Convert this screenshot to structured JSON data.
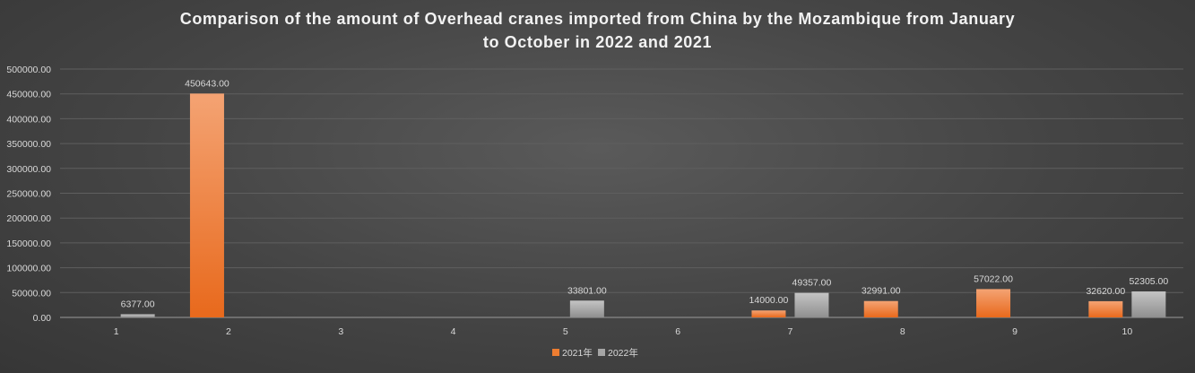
{
  "chart_data": {
    "type": "bar",
    "title_lines": [
      "Comparison of the amount of Overhead cranes imported from China by the Mozambique from January",
      "to October in 2022 and 2021"
    ],
    "categories": [
      "1",
      "2",
      "3",
      "4",
      "5",
      "6",
      "7",
      "8",
      "9",
      "10"
    ],
    "series": [
      {
        "name": "2021年",
        "color": "#ed7d31",
        "values": [
          null,
          450643.0,
          null,
          null,
          null,
          null,
          14000.0,
          32991.0,
          57022.0,
          32620.0
        ],
        "labels": [
          null,
          "450643.00",
          null,
          null,
          null,
          null,
          "14000.00",
          "32991.00",
          "57022.00",
          "32620.00"
        ]
      },
      {
        "name": "2022年",
        "color": "#a5a5a5",
        "values": [
          6377.0,
          null,
          null,
          null,
          33801.0,
          null,
          49357.0,
          null,
          null,
          52305.0
        ],
        "labels": [
          "6377.00",
          null,
          null,
          null,
          "33801.00",
          null,
          "49357.00",
          null,
          null,
          "52305.00"
        ]
      }
    ],
    "ylim": [
      0,
      500000
    ],
    "yticks": [
      0,
      50000,
      100000,
      150000,
      200000,
      250000,
      300000,
      350000,
      400000,
      450000,
      500000
    ],
    "ytick_labels": [
      "0.00",
      "50000.00",
      "100000.00",
      "150000.00",
      "200000.00",
      "250000.00",
      "300000.00",
      "350000.00",
      "400000.00",
      "450000.00",
      "500000.00"
    ],
    "xlabel": "",
    "ylabel": "",
    "grid": true,
    "legend_position": "bottom"
  }
}
